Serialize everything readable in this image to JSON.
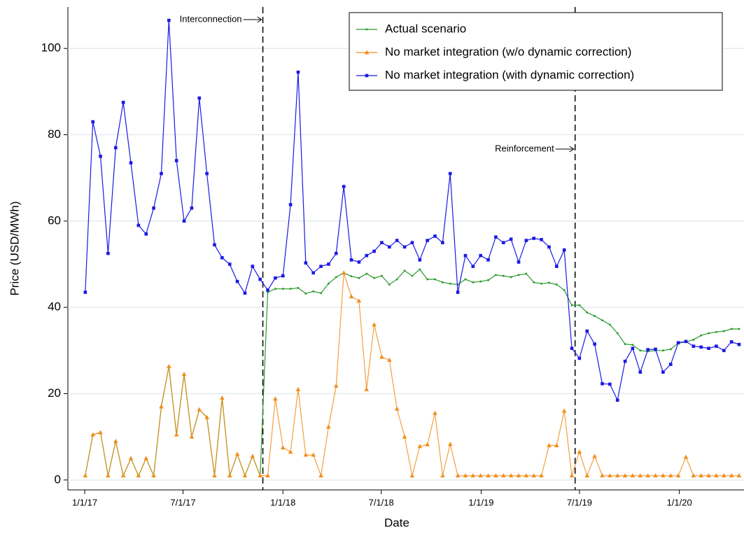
{
  "chart_data": {
    "type": "line",
    "x_label": "Date",
    "y_label": "Price (USD/MWh)",
    "xlim": [
      "2016-12-01",
      "2020-04-29"
    ],
    "ylim": [
      -2.3,
      109.6
    ],
    "yticks": [
      0,
      20,
      40,
      60,
      80,
      100
    ],
    "xticks": [
      {
        "value": "2017-01-01",
        "label": "1/1/17"
      },
      {
        "value": "2017-07-01",
        "label": "7/1/17"
      },
      {
        "value": "2018-01-01",
        "label": "1/1/18"
      },
      {
        "value": "2018-07-01",
        "label": "7/1/18"
      },
      {
        "value": "2019-01-01",
        "label": "1/1/19"
      },
      {
        "value": "2019-07-01",
        "label": "7/1/19"
      },
      {
        "value": "2020-01-01",
        "label": "1/1/20"
      }
    ],
    "grid": true,
    "legend": "top-right",
    "events": [
      {
        "x": "2017-11-25",
        "label": "Interconnection"
      },
      {
        "x": "2019-06-23",
        "label": "Reinforcement"
      }
    ],
    "x": [
      "2017-01-02",
      "2017-01-16",
      "2017-01-30",
      "2017-02-13",
      "2017-02-27",
      "2017-03-13",
      "2017-03-27",
      "2017-04-10",
      "2017-04-24",
      "2017-05-08",
      "2017-05-22",
      "2017-06-05",
      "2017-06-19",
      "2017-07-03",
      "2017-07-17",
      "2017-07-31",
      "2017-08-14",
      "2017-08-28",
      "2017-09-11",
      "2017-09-25",
      "2017-10-09",
      "2017-10-23",
      "2017-11-06",
      "2017-11-20",
      "2017-12-04",
      "2017-12-18",
      "2018-01-01",
      "2018-01-15",
      "2018-01-29",
      "2018-02-12",
      "2018-02-26",
      "2018-03-12",
      "2018-03-26",
      "2018-04-09",
      "2018-04-23",
      "2018-05-07",
      "2018-05-21",
      "2018-06-04",
      "2018-06-18",
      "2018-07-02",
      "2018-07-16",
      "2018-07-30",
      "2018-08-13",
      "2018-08-27",
      "2018-09-10",
      "2018-09-24",
      "2018-10-08",
      "2018-10-22",
      "2018-11-05",
      "2018-11-19",
      "2018-12-03",
      "2018-12-17",
      "2018-12-31",
      "2019-01-14",
      "2019-01-28",
      "2019-02-11",
      "2019-02-25",
      "2019-03-11",
      "2019-03-25",
      "2019-04-08",
      "2019-04-22",
      "2019-05-06",
      "2019-05-20",
      "2019-06-03",
      "2019-06-17",
      "2019-07-01",
      "2019-07-15",
      "2019-07-29",
      "2019-08-12",
      "2019-08-26",
      "2019-09-09",
      "2019-09-23",
      "2019-10-07",
      "2019-10-21",
      "2019-11-04",
      "2019-11-18",
      "2019-12-02",
      "2019-12-16",
      "2019-12-30",
      "2020-01-13",
      "2020-01-27",
      "2020-02-10",
      "2020-02-24",
      "2020-03-09",
      "2020-03-23",
      "2020-04-06",
      "2020-04-20"
    ],
    "series": [
      {
        "name": "Actual scenario",
        "color": "#2a9a2a",
        "marker": "square-small",
        "values": [
          1,
          10.5,
          11,
          1,
          9,
          1,
          5,
          1,
          5,
          1,
          17,
          26.3,
          10.5,
          24.5,
          10,
          16.3,
          14.5,
          1,
          19,
          1,
          6,
          1,
          5.5,
          1,
          43.5,
          44.3,
          44.3,
          44.3,
          44.5,
          43.2,
          43.7,
          43.3,
          45.5,
          47,
          48,
          47.2,
          46.8,
          47.8,
          46.8,
          47.3,
          45.3,
          46.5,
          48.5,
          47.3,
          48.8,
          46.5,
          46.5,
          45.8,
          45.5,
          45.3,
          46.5,
          45.8,
          46,
          46.3,
          47.5,
          47.3,
          47,
          47.5,
          47.8,
          45.8,
          45.5,
          45.7,
          45.3,
          44,
          40.5,
          40.5,
          38.8,
          38,
          37,
          36,
          34,
          31.5,
          31.3,
          30,
          29.8,
          30,
          30,
          30.3,
          31.7,
          32,
          32.5,
          33.5,
          34,
          34.3,
          34.5,
          35,
          35
        ]
      },
      {
        "name": "No market integration (w/o dynamic correction)",
        "color": "#f28e1c",
        "marker": "triangle",
        "values": [
          1,
          10.5,
          11,
          1,
          9,
          1,
          5,
          1,
          5,
          1,
          17,
          26.3,
          10.5,
          24.5,
          10,
          16.3,
          14.5,
          1,
          19,
          1,
          6,
          1,
          5.5,
          1,
          1,
          18.8,
          7.5,
          6.5,
          21,
          5.8,
          5.8,
          1,
          12.3,
          21.8,
          48,
          42.5,
          41.5,
          21,
          36,
          28.5,
          27.8,
          16.5,
          10,
          1,
          7.8,
          8.2,
          15.5,
          1,
          8.3,
          1,
          1,
          1,
          1,
          1,
          1,
          1,
          1,
          1,
          1,
          1,
          1,
          8,
          8,
          16,
          1,
          6.5,
          1,
          5.5,
          1,
          1,
          1,
          1,
          1,
          1,
          1,
          1,
          1,
          1,
          1,
          5.3,
          1,
          1,
          1,
          1,
          1,
          1,
          1
        ]
      },
      {
        "name": "No market integration (with dynamic correction)",
        "color": "#1a1ae6",
        "marker": "square",
        "values": [
          43.5,
          83,
          75,
          52.5,
          77,
          87.5,
          73.5,
          59,
          57,
          63,
          71,
          106.5,
          74,
          60,
          63,
          88.5,
          71,
          54.5,
          51.5,
          50,
          46,
          43.3,
          49.5,
          46.5,
          44,
          46.8,
          47.3,
          63.8,
          94.5,
          50.3,
          48,
          49.5,
          50,
          52.5,
          68,
          51,
          50.5,
          52,
          53,
          55,
          54,
          55.5,
          54,
          55,
          51,
          55.5,
          56.5,
          55,
          71,
          43.5,
          52,
          49.5,
          52,
          51,
          56.3,
          55,
          55.8,
          50.5,
          55.5,
          56,
          55.7,
          54,
          49.5,
          53.3,
          30.5,
          28.2,
          34.5,
          31.5,
          22.3,
          22.2,
          18.5,
          27.5,
          30.5,
          25,
          30.2,
          30.3,
          25,
          26.8,
          31.8,
          32.1,
          31,
          30.8,
          30.5,
          31,
          30,
          32,
          31.4
        ]
      }
    ]
  }
}
